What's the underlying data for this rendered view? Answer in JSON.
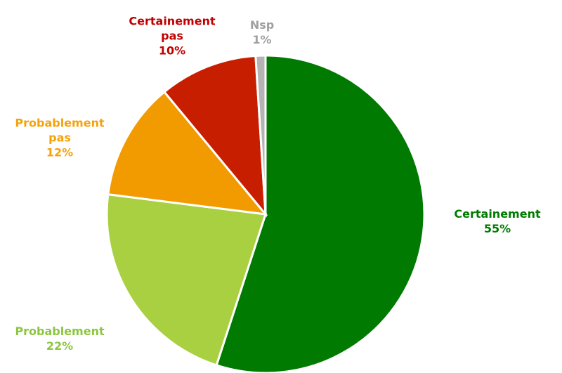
{
  "chart_data": {
    "type": "pie",
    "categories": [
      "Certainement",
      "Probablement",
      "Probablement pas",
      "Certainement pas",
      "Nsp"
    ],
    "values": [
      55,
      22,
      12,
      10,
      1
    ],
    "value_labels": [
      "55%",
      "22%",
      "12%",
      "10%",
      "1%"
    ],
    "colors": [
      "#007a00",
      "#a9d040",
      "#f29b00",
      "#c81e00",
      "#b4b4b4"
    ],
    "label_colors": [
      "#007a00",
      "#8cc63f",
      "#f5a10a",
      "#c00000",
      "#a0a0a0"
    ]
  }
}
